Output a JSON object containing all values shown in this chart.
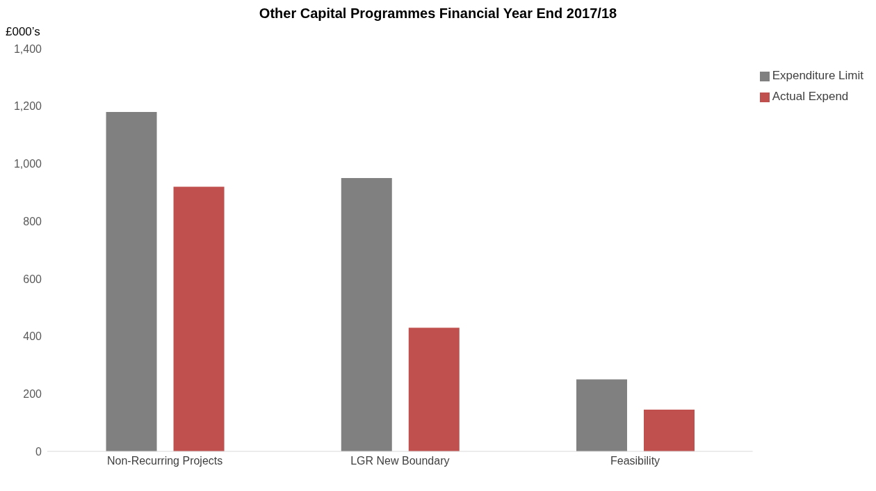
{
  "chart_data": {
    "type": "bar",
    "title": "Other Capital Programmes Financial Year End 2017/18",
    "ylabel": "£000’s",
    "categories": [
      "Non-Recurring Projects",
      "LGR New Boundary",
      "Feasibility"
    ],
    "series": [
      {
        "name": "Expenditure Limit",
        "color": "#808080",
        "values": [
          1180,
          950,
          250
        ]
      },
      {
        "name": "Actual Expend",
        "color": "#c0504d",
        "values": [
          920,
          430,
          145
        ]
      }
    ],
    "ylim": [
      0,
      1400
    ],
    "yticks": [
      0,
      200,
      400,
      600,
      800,
      {
        "value": 1000,
        "label": "1,000"
      },
      {
        "value": 1200,
        "label": "1,200"
      },
      {
        "value": 1400,
        "label": "1,400"
      }
    ],
    "grid": false,
    "legend": "top right"
  }
}
